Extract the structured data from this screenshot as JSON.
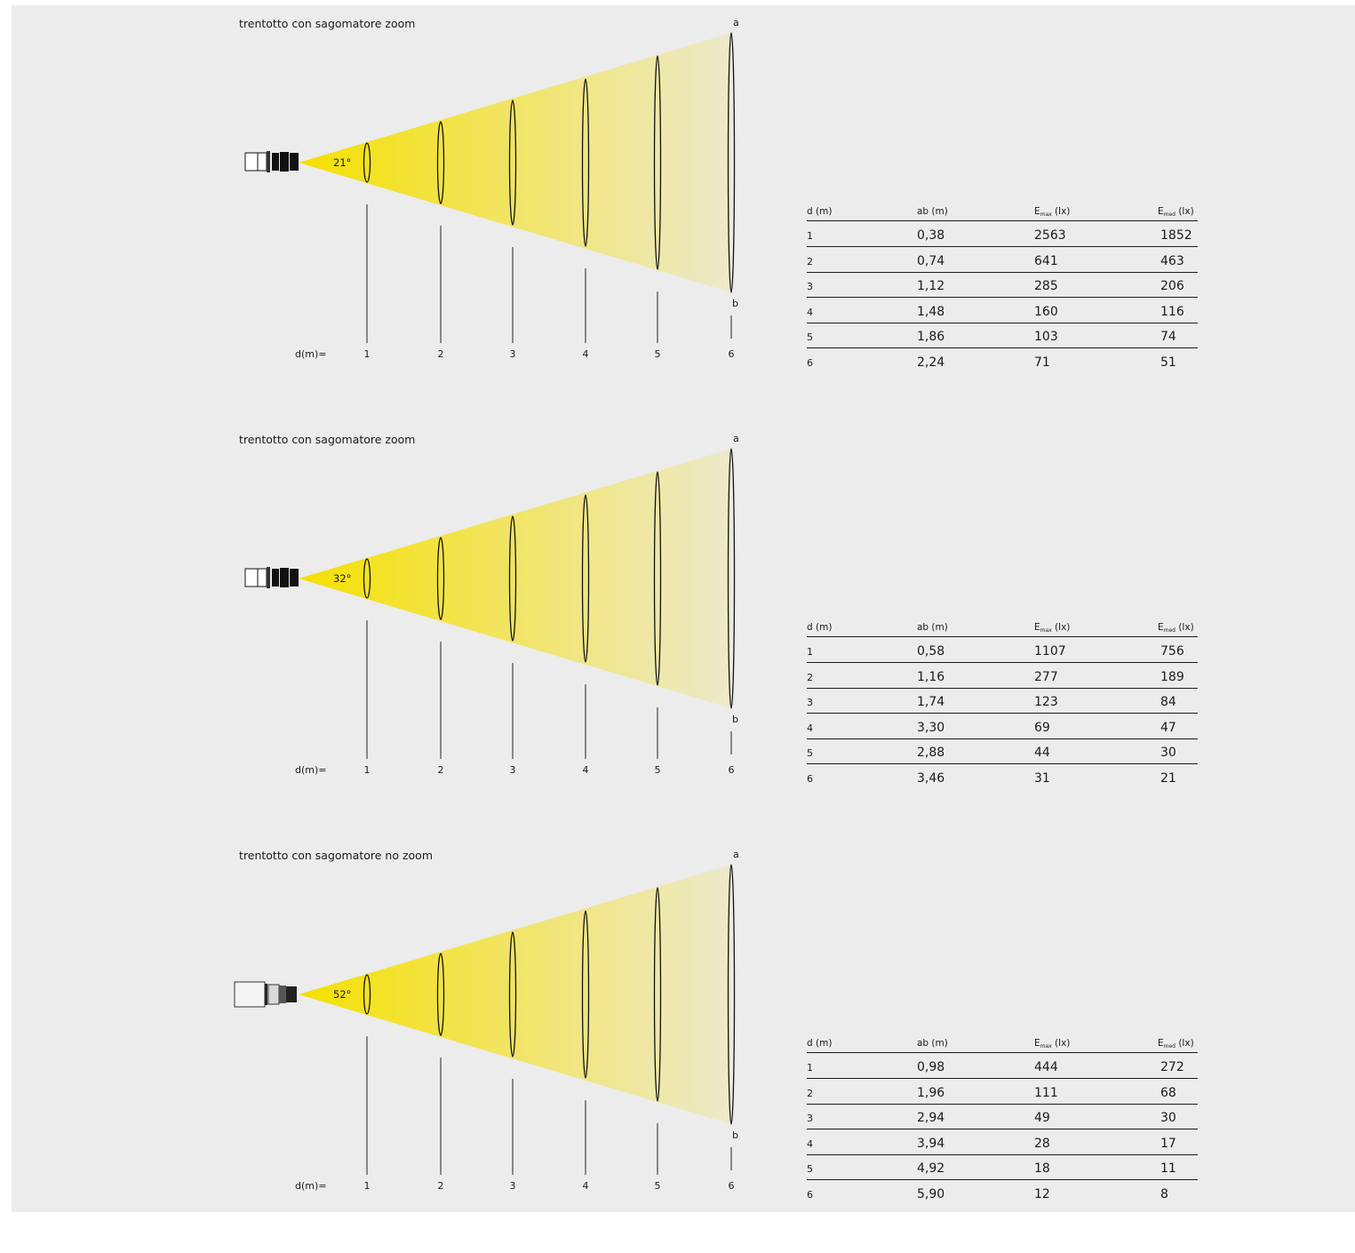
{
  "panels": [
    {
      "title": "trentotto con sagomatore zoom",
      "angle": "21°",
      "marks": [
        "1",
        "2",
        "3",
        "4",
        "5",
        "6"
      ],
      "d_label": "d(m)=",
      "point_a": "a",
      "point_b": "b",
      "table": {
        "headers": {
          "d": "d (m)",
          "ab": "ab (m)",
          "emax_base": "E",
          "emax_sub": "max",
          "emax_unit": " (lx)",
          "emed_base": "E",
          "emed_sub": "med",
          "emed_unit": " (lx)"
        },
        "rows": [
          {
            "d": "1",
            "ab": "0,38",
            "emax": "2563",
            "emed": "1852"
          },
          {
            "d": "2",
            "ab": "0,74",
            "emax": "641",
            "emed": "463"
          },
          {
            "d": "3",
            "ab": "1,12",
            "emax": "285",
            "emed": "206"
          },
          {
            "d": "4",
            "ab": "1,48",
            "emax": "160",
            "emed": "116"
          },
          {
            "d": "5",
            "ab": "1,86",
            "emax": "103",
            "emed": "74"
          },
          {
            "d": "6",
            "ab": "2,24",
            "emax": "71",
            "emed": "51"
          }
        ]
      }
    },
    {
      "title": "trentotto con sagomatore zoom",
      "angle": "32°",
      "marks": [
        "1",
        "2",
        "3",
        "4",
        "5",
        "6"
      ],
      "d_label": "d(m)=",
      "point_a": "a",
      "point_b": "b",
      "table": {
        "headers": {
          "d": "d (m)",
          "ab": "ab (m)",
          "emax_base": "E",
          "emax_sub": "max",
          "emax_unit": " (lx)",
          "emed_base": "E",
          "emed_sub": "med",
          "emed_unit": " (lx)"
        },
        "rows": [
          {
            "d": "1",
            "ab": "0,58",
            "emax": "1107",
            "emed": "756"
          },
          {
            "d": "2",
            "ab": "1,16",
            "emax": "277",
            "emed": "189"
          },
          {
            "d": "3",
            "ab": "1,74",
            "emax": "123",
            "emed": "84"
          },
          {
            "d": "4",
            "ab": "3,30",
            "emax": "69",
            "emed": "47"
          },
          {
            "d": "5",
            "ab": "2,88",
            "emax": "44",
            "emed": "30"
          },
          {
            "d": "6",
            "ab": "3,46",
            "emax": "31",
            "emed": "21"
          }
        ]
      }
    },
    {
      "title": "trentotto con sagomatore no zoom",
      "angle": "52°",
      "marks": [
        "1",
        "2",
        "3",
        "4",
        "5",
        "6"
      ],
      "d_label": "d(m)=",
      "point_a": "a",
      "point_b": "b",
      "table": {
        "headers": {
          "d": "d (m)",
          "ab": "ab (m)",
          "emax_base": "E",
          "emax_sub": "max",
          "emax_unit": " (lx)",
          "emed_base": "E",
          "emed_sub": "med",
          "emed_unit": " (lx)"
        },
        "rows": [
          {
            "d": "1",
            "ab": "0,98",
            "emax": "444",
            "emed": "272"
          },
          {
            "d": "2",
            "ab": "1,96",
            "emax": "111",
            "emed": "68"
          },
          {
            "d": "3",
            "ab": "2,94",
            "emax": "49",
            "emed": "30"
          },
          {
            "d": "4",
            "ab": "3,94",
            "emax": "28",
            "emed": "17"
          },
          {
            "d": "5",
            "ab": "4,92",
            "emax": "18",
            "emed": "11"
          },
          {
            "d": "6",
            "ab": "5,90",
            "emax": "12",
            "emed": "8"
          }
        ]
      }
    }
  ],
  "colors": {
    "beam_start": "#f5e000",
    "beam_end": "#ede9cc",
    "background": "#ececec",
    "ink": "#1a1a1a"
  }
}
